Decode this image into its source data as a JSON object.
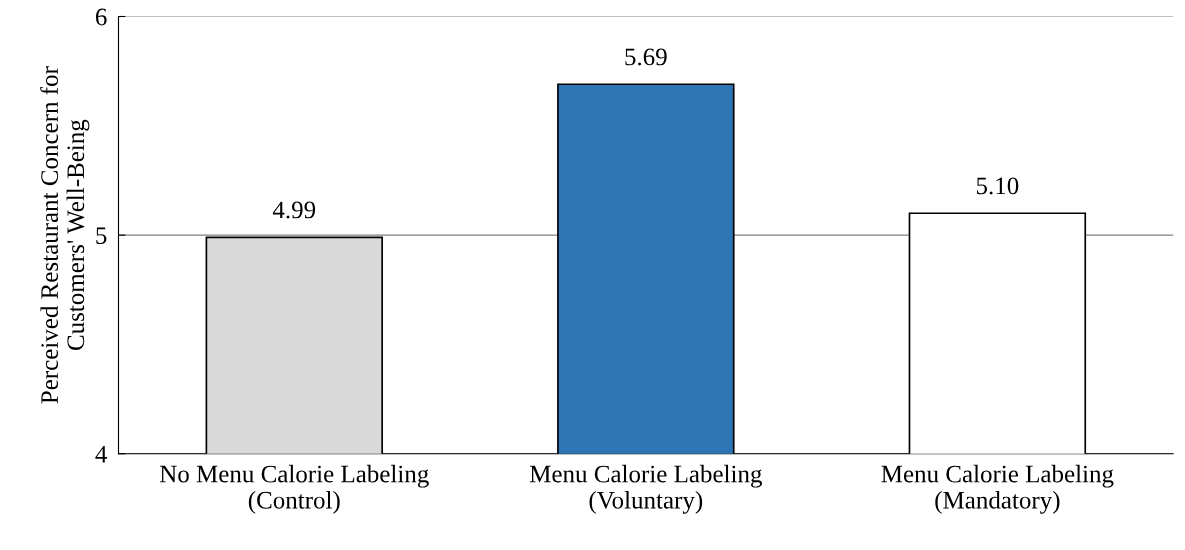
{
  "chart_data": {
    "type": "bar",
    "ylabel": "Perceived Restaurant Concern for\nCustomers' Well-Being",
    "categories": [
      "No Menu Calorie Labeling\n(Control)",
      "Menu Calorie Labeling\n(Voluntary)",
      "Menu Calorie Labeling\n(Mandatory)"
    ],
    "values": [
      4.99,
      5.69,
      5.1
    ],
    "value_labels": [
      "4.99",
      "5.69",
      "5.10"
    ],
    "colors": [
      "#d9d9d9",
      "#2e75b6",
      "#ffffff"
    ],
    "ylim": [
      4,
      6
    ],
    "yticks": [
      4,
      5,
      6
    ],
    "grid": "y"
  }
}
